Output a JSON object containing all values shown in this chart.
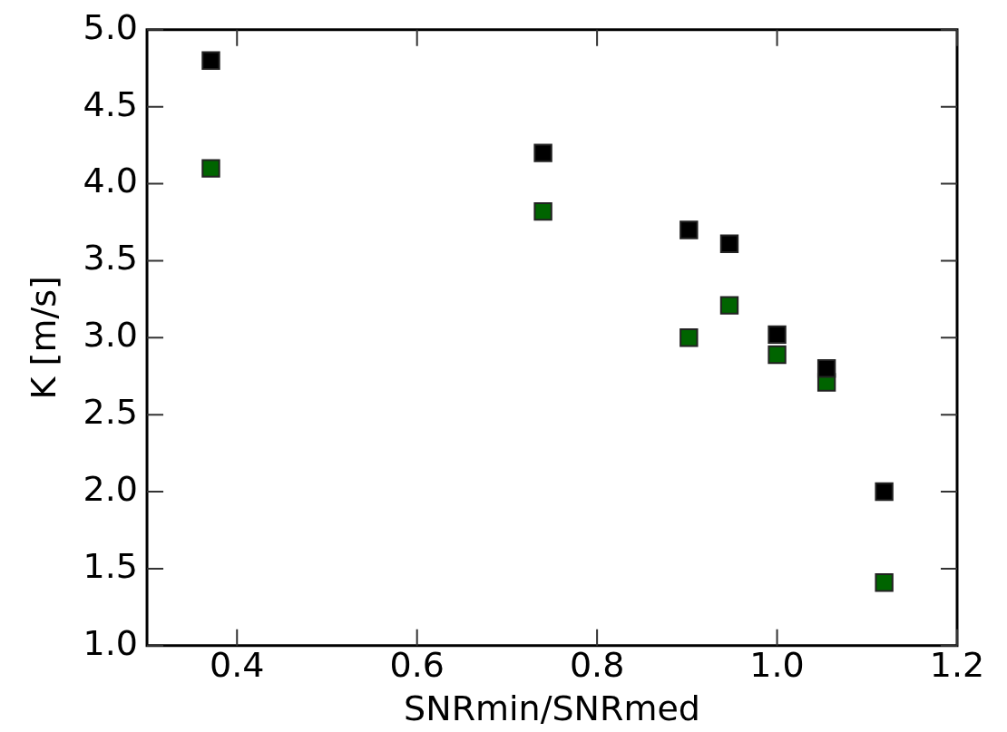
{
  "chart_data": {
    "type": "scatter",
    "xlabel": "SNRmin/SNRmed",
    "ylabel": "K [m/s]",
    "x": [
      0.371,
      0.74,
      0.902,
      0.947,
      1.0,
      1.055,
      1.119
    ],
    "series": [
      {
        "color": "#000000",
        "values": [
          4.8,
          4.2,
          3.7,
          3.61,
          3.02,
          2.8,
          2.0
        ]
      },
      {
        "color": "#006400",
        "values": [
          4.1,
          3.82,
          3.0,
          3.21,
          2.89,
          2.71,
          1.41
        ]
      }
    ],
    "xlim": [
      0.3,
      1.2
    ],
    "xticks": [
      0.4,
      0.6,
      0.8,
      {
        "value": 1,
        "label": "1.0"
      },
      1.2
    ],
    "ylim": [
      1.0,
      5.0
    ],
    "yticks": [
      {
        "value": 1,
        "label": "1.0"
      },
      1.5,
      {
        "value": 2,
        "label": "2.0"
      },
      2.5,
      {
        "value": 3,
        "label": "3.0"
      },
      3.5,
      {
        "value": 4,
        "label": "4.0"
      },
      4.5,
      {
        "value": 5,
        "label": "5.0"
      }
    ],
    "marker": "square",
    "grid": false,
    "legend": false
  }
}
